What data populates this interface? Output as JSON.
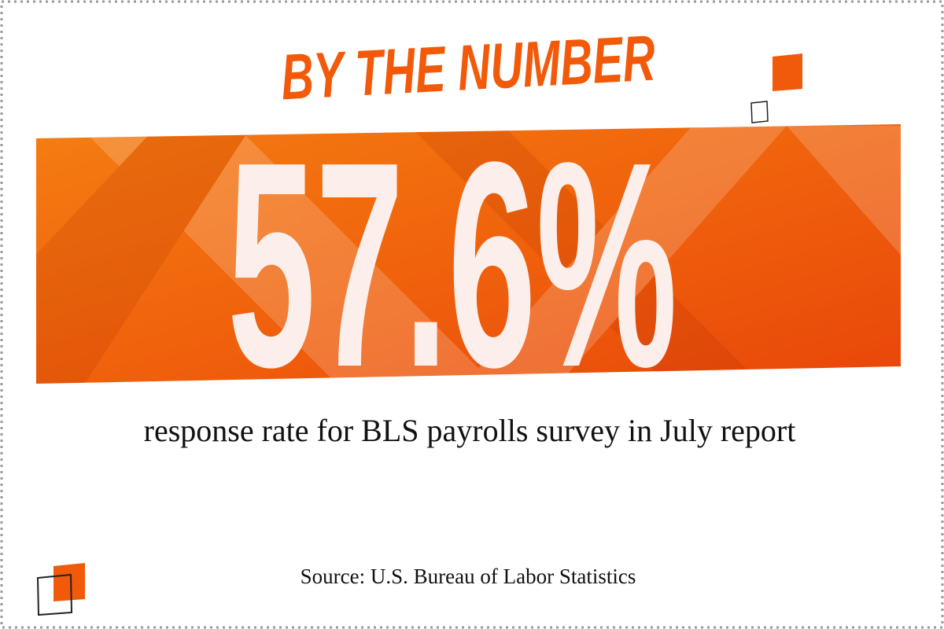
{
  "headline": "BY THE NUMBER",
  "stat": "57.6%",
  "description": "response rate for BLS payrolls survey in July report",
  "source": "Source: U.S. Bureau of Labor Statistics"
}
